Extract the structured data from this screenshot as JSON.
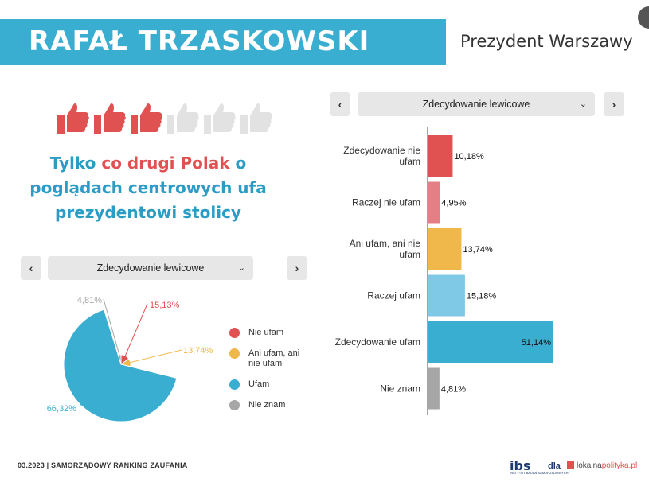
{
  "header": {
    "title": "RAFAŁ TRZASKOWSKI",
    "subtitle": "Prezydent Warszawy"
  },
  "rating": {
    "filled": 3,
    "total": 6
  },
  "headline": {
    "part1": "Tylko ",
    "highlight": "co drugi Polak",
    "part2": " o poglądach centrowych ufa prezydentowi stolicy"
  },
  "left_selector": {
    "prev": "‹",
    "value": "Zdecydowanie lewicowe",
    "next": "›"
  },
  "right_selector": {
    "prev": "‹",
    "value": "Zdecydowanie lewicowe",
    "next": "›"
  },
  "legend": [
    {
      "label": "Nie ufam",
      "color": "#e05252"
    },
    {
      "label": "Ani ufam, ani nie ufam",
      "color": "#f0b74b"
    },
    {
      "label": "Ufam",
      "color": "#3aaed1"
    },
    {
      "label": "Nie znam",
      "color": "#a6a6a6"
    }
  ],
  "chart_data": [
    {
      "type": "pie",
      "labels": [
        "Nie ufam",
        "Ani ufam, ani nie ufam",
        "Ufam",
        "Nie znam"
      ],
      "values": [
        15.13,
        13.74,
        66.32,
        4.81
      ],
      "value_labels": [
        "15,13%",
        "13,74%",
        "66,32%",
        "4,81%"
      ],
      "colors": [
        "#e05252",
        "#f0b74b",
        "#3aaed1",
        "#a6a6a6"
      ],
      "exploded": "Ufam"
    },
    {
      "type": "bar",
      "orientation": "horizontal",
      "categories": [
        "Zdecydowanie nie ufam",
        "Raczej nie ufam",
        "Ani ufam, ani nie ufam",
        "Raczej ufam",
        "Zdecydowanie ufam",
        "Nie znam"
      ],
      "values": [
        10.18,
        4.95,
        13.74,
        15.18,
        51.14,
        4.81
      ],
      "value_labels": [
        "10,18%",
        "4,95%",
        "13,74%",
        "15,18%",
        "51,14%",
        "4,81%"
      ],
      "colors": [
        "#e05252",
        "#e57f86",
        "#f0b74b",
        "#7fc9e6",
        "#3aaed1",
        "#a6a6a6"
      ],
      "xlim": [
        0,
        51.14
      ]
    }
  ],
  "footer": {
    "text": "03.2023 | SAMORZĄDOWY RANKING ZAUFANIA",
    "logo_ibs": "ibs",
    "logo_ibs_sub": "INSTYTUT BADAŃ SAMORZĄDOWYCH",
    "logo_dla": "dla",
    "logo_lp_a": "lokalna",
    "logo_lp_b": "polityka.pl"
  }
}
